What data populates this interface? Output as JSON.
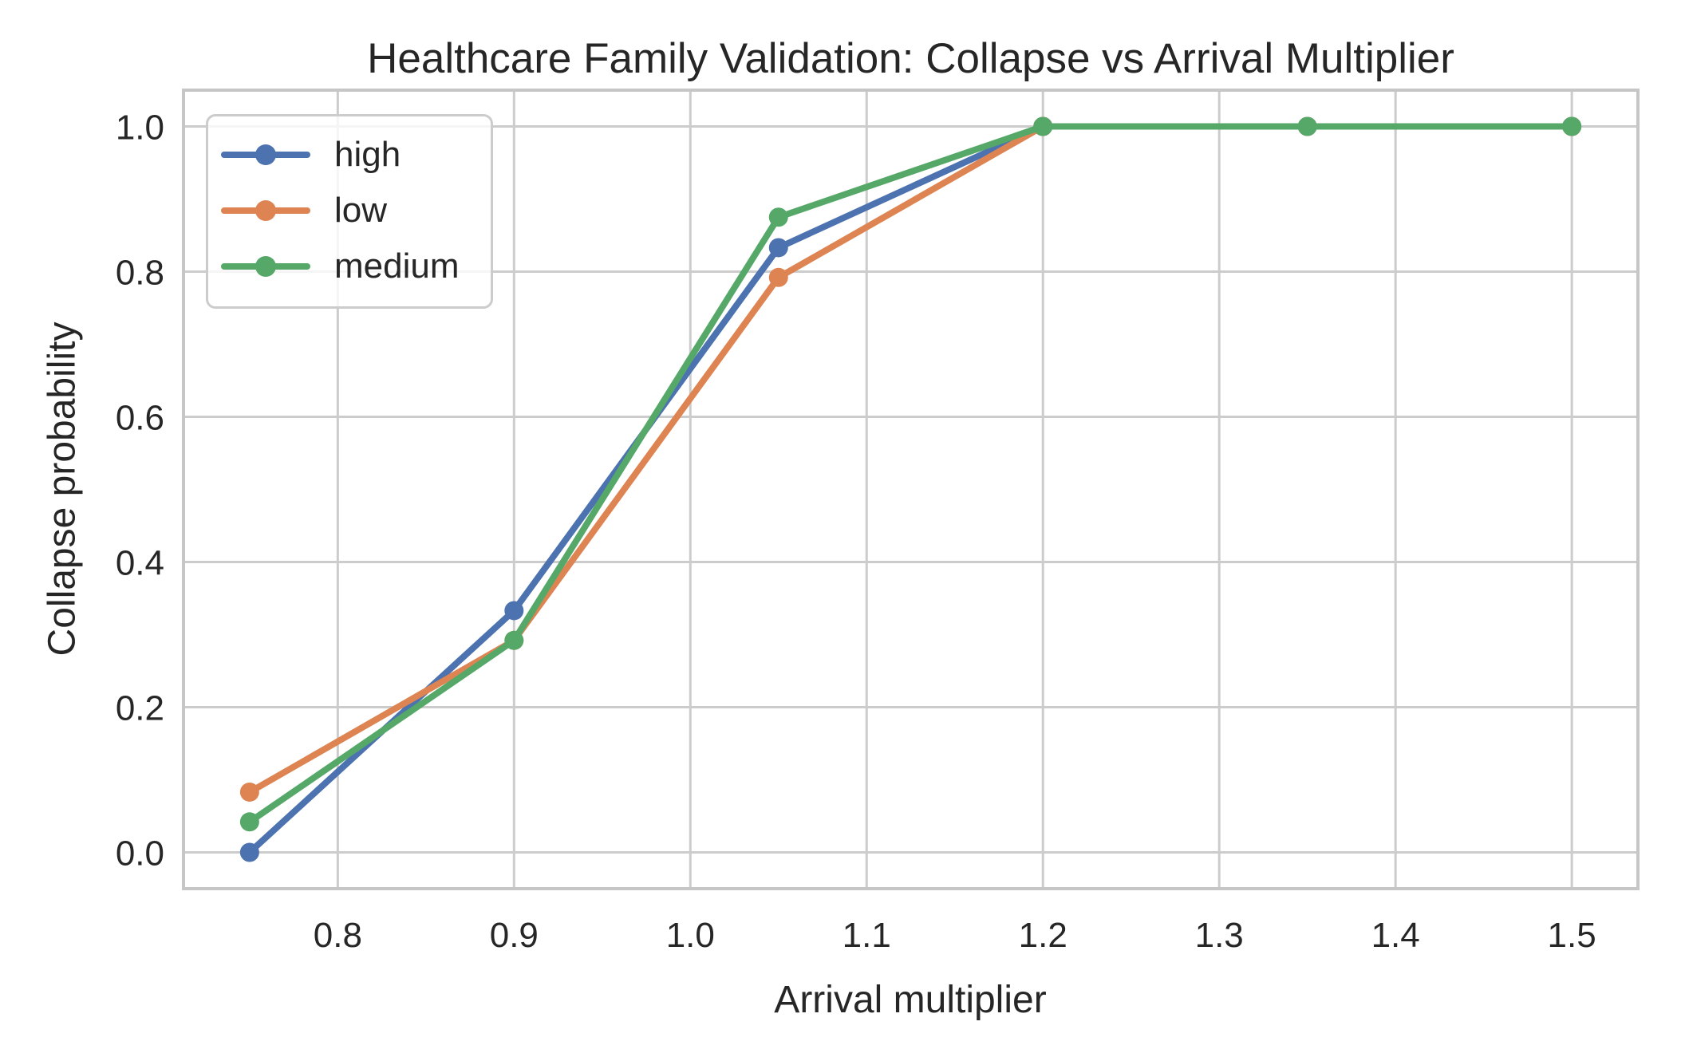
{
  "chart_data": {
    "type": "line",
    "title": "Healthcare Family Validation: Collapse vs Arrival Multiplier",
    "xlabel": "Arrival multiplier",
    "ylabel": "Collapse probability",
    "x": [
      0.75,
      0.9,
      1.05,
      1.2,
      1.35,
      1.5
    ],
    "series": [
      {
        "name": "high",
        "color": "#4C72B0",
        "values": [
          0.0,
          0.333,
          0.833,
          1.0,
          1.0,
          1.0
        ]
      },
      {
        "name": "low",
        "color": "#DD8452",
        "values": [
          0.083,
          0.292,
          0.792,
          1.0,
          1.0,
          1.0
        ]
      },
      {
        "name": "medium",
        "color": "#55A868",
        "values": [
          0.042,
          0.292,
          0.875,
          1.0,
          1.0,
          1.0
        ]
      }
    ],
    "xticks": [
      0.8,
      0.9,
      1.0,
      1.1,
      1.2,
      1.3,
      1.4,
      1.5
    ],
    "xtick_labels": [
      "0.8",
      "0.9",
      "1.0",
      "1.1",
      "1.2",
      "1.3",
      "1.4",
      "1.5"
    ],
    "yticks": [
      0.0,
      0.2,
      0.4,
      0.6,
      0.8,
      1.0
    ],
    "ytick_labels": [
      "0.0",
      "0.2",
      "0.4",
      "0.6",
      "0.8",
      "1.0"
    ],
    "xlim": [
      0.7125,
      1.5375
    ],
    "ylim": [
      -0.05,
      1.05
    ],
    "grid": true,
    "legend_position": "upper left",
    "marker": "circle",
    "colors": {
      "grid": "#cccccc",
      "spine": "#c6c6c6",
      "text": "#262626",
      "legend_border": "#cccccc",
      "background": "#ffffff"
    }
  }
}
